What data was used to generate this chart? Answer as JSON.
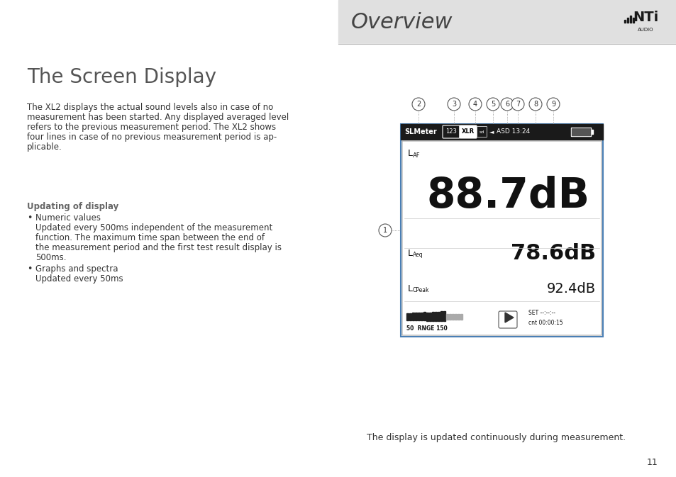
{
  "page_bg": "#f0f0f0",
  "content_bg": "#ffffff",
  "header_bg": "#e0e0e0",
  "header_text": "Overview",
  "header_text_color": "#444444",
  "logo_text": "NTi",
  "logo_sub": "AUDIO",
  "title": "The Screen Display",
  "body_text": "The XL2 displays the actual sound levels also in case of no\nmeasurement has been started. Any displayed averaged level\nrefers to the previous measurement period. The XL2 shows\nfour lines in case of no previous measurement period is ap-\nplicable.",
  "updating_title": "Updating of display",
  "bullet1_title": "Numeric values",
  "bullet1_body": "Updated every 500ms independent of the measurement\nfunction. The maximum time span between the end of\nthe measurement period and the first test result display is\n500ms.",
  "bullet2_title": "Graphs and spectra",
  "bullet2_body": "Updated every 50ms",
  "caption": "The display is updated continuously during measurement.",
  "page_number": "11",
  "display_border_color": "#4a7fb5",
  "display_bg": "#ffffff",
  "status_bar_bg": "#1a1a1a",
  "status_text": "SLMeter  123 XLR",
  "status_right": "ASD 13:24",
  "main_label": "L",
  "main_sub": "AF",
  "main_value": "88.7dB",
  "row2_label": "L",
  "row2_sub": "Aeq",
  "row2_value": "78.6dB",
  "row3_label": "L",
  "row3_sub": "CPeak",
  "row3_value": "92.4dB",
  "bottom_left": "50  RNGE 150",
  "bottom_right": "SET --:--:--\ncnt 00:00:15",
  "circle_labels": [
    "2",
    "3",
    "4",
    "5",
    "6",
    "7",
    "8",
    "9"
  ],
  "circle1_label": "1"
}
